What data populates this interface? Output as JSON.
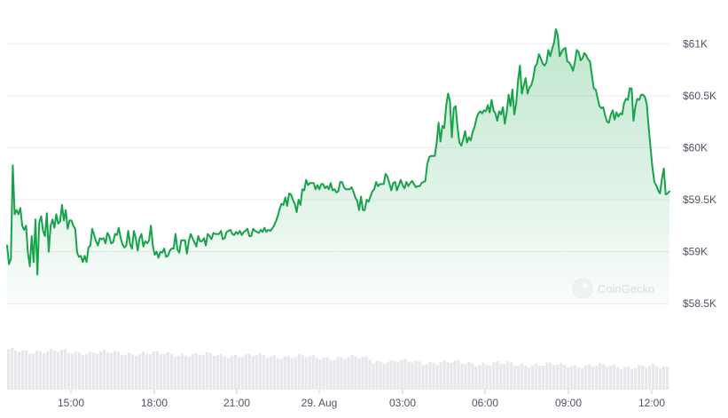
{
  "chart_data": {
    "type": "area",
    "title": "",
    "xlabel": "",
    "ylabel": "",
    "ylim": [
      58450,
      61250
    ],
    "y_ticks": [
      {
        "value": 58500,
        "label": "$58.5K"
      },
      {
        "value": 59000,
        "label": "$59K"
      },
      {
        "value": 59500,
        "label": "$59.5K"
      },
      {
        "value": 60000,
        "label": "$60K"
      },
      {
        "value": 60500,
        "label": "$60.5K"
      },
      {
        "value": 61000,
        "label": "$61K"
      }
    ],
    "x_ticks": [
      "15:00",
      "18:00",
      "21:00",
      "29. Aug",
      "03:00",
      "06:00",
      "09:00",
      "12:00"
    ],
    "grid": true,
    "line_color": "#16a34a",
    "fill_color": "#16a34a",
    "volume_color": "#e5e7eb",
    "series": [
      {
        "values": [
          59060,
          58880,
          58930,
          59830,
          59360,
          59400,
          59360,
          59420,
          59250,
          59210,
          59250,
          58990,
          58860,
          59150,
          58900,
          59310,
          58780,
          59280,
          59340,
          59200,
          59150,
          59370,
          59000,
          59250,
          59310,
          59230,
          59360,
          59270,
          59290,
          59450,
          59300,
          59400,
          59220,
          59300,
          59300,
          59250,
          59220,
          58990,
          58950,
          58960,
          58900,
          58960,
          58900,
          59040,
          59060,
          59220,
          59160,
          59100,
          59060,
          59130,
          59120,
          59130,
          59080,
          59180,
          59150,
          59080,
          59090,
          59170,
          59160,
          59230,
          59130,
          59070,
          59040,
          59060,
          59200,
          59070,
          59030,
          59200,
          59130,
          59010,
          59130,
          59170,
          59050,
          59100,
          59080,
          59110,
          59250,
          59060,
          58970,
          59000,
          58940,
          59000,
          58990,
          59030,
          58950,
          58960,
          59010,
          59030,
          59030,
          59170,
          59020,
          58990,
          59110,
          59110,
          59110,
          58980,
          59100,
          59170,
          59130,
          59090,
          59050,
          59150,
          59100,
          59100,
          59130,
          59060,
          59170,
          59150,
          59120,
          59180,
          59170,
          59170,
          59170,
          59200,
          59120,
          59130,
          59190,
          59200,
          59210,
          59170,
          59160,
          59190,
          59170,
          59200,
          59160,
          59190,
          59200,
          59220,
          59150,
          59150,
          59220,
          59200,
          59190,
          59180,
          59210,
          59190,
          59230,
          59190,
          59210,
          59200,
          59220,
          59250,
          59290,
          59340,
          59410,
          59460,
          59450,
          59520,
          59440,
          59560,
          59550,
          59500,
          59460,
          59380,
          59500,
          59450,
          59600,
          59590,
          59690,
          59640,
          59660,
          59660,
          59660,
          59600,
          59640,
          59600,
          59650,
          59650,
          59610,
          59630,
          59600,
          59660,
          59590,
          59600,
          59570,
          59580,
          59670,
          59670,
          59620,
          59600,
          59600,
          59600,
          59620,
          59580,
          59520,
          59490,
          59400,
          59530,
          59400,
          59400,
          59500,
          59480,
          59530,
          59580,
          59600,
          59670,
          59630,
          59650,
          59650,
          59650,
          59750,
          59720,
          59660,
          59590,
          59660,
          59670,
          59590,
          59640,
          59690,
          59640,
          59610,
          59670,
          59630,
          59660,
          59680,
          59650,
          59620,
          59630,
          59630,
          59660,
          59670,
          59680,
          59840,
          59910,
          59920,
          59920,
          59920,
          60050,
          60240,
          60060,
          60210,
          60190,
          60400,
          60520,
          60450,
          60100,
          60380,
          60400,
          60200,
          60050,
          60020,
          60080,
          60160,
          60050,
          60100,
          60070,
          60150,
          60200,
          60280,
          60330,
          60350,
          60330,
          60360,
          60350,
          60410,
          60340,
          60460,
          60360,
          60330,
          60260,
          60350,
          60320,
          60390,
          60230,
          60340,
          60510,
          60400,
          60560,
          60320,
          60420,
          60650,
          60790,
          60520,
          60600,
          60670,
          60520,
          60580,
          60600,
          60670,
          60780,
          60810,
          60900,
          60860,
          60810,
          60790,
          60820,
          60940,
          60880,
          60950,
          61010,
          61140,
          61080,
          60880,
          60920,
          60950,
          60960,
          60830,
          60820,
          60790,
          60740,
          60820,
          60940,
          60920,
          60840,
          60860,
          60910,
          60890,
          60850,
          60830,
          60700,
          60570,
          60560,
          60480,
          60400,
          60380,
          60390,
          60310,
          60250,
          60240,
          60320,
          60360,
          60270,
          60340,
          60300,
          60330,
          60320,
          60430,
          60470,
          60460,
          60570,
          60570,
          60260,
          60400,
          60470,
          60460,
          60510,
          60510,
          60490,
          60420,
          60200,
          60000,
          59810,
          59670,
          59640,
          59590,
          59560,
          59700,
          59800,
          59550,
          59560,
          59580
        ]
      }
    ],
    "watermark": "CoinGecko"
  }
}
